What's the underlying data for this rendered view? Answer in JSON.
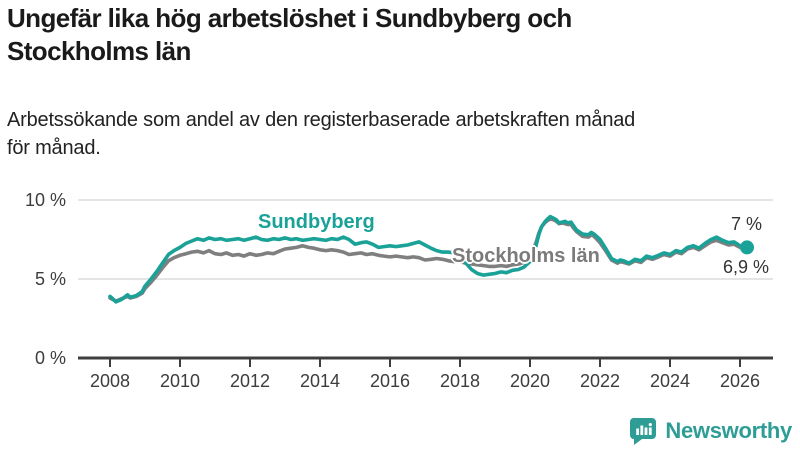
{
  "header": {
    "title_lines": [
      "Ungefär lika hög arbetslöshet i Sundbyberg och",
      "Stockholms län"
    ],
    "subtitle_lines": [
      "Arbetssökande som andel av den registerbaserade arbetskraften månad",
      "för månad."
    ]
  },
  "branding": {
    "name": "Newsworthy",
    "logo_icon": "speech-bubble-bar-chart",
    "brand_color": "#2e9d96"
  },
  "chart_data": {
    "type": "line",
    "title": "Ungefär lika hög arbetslöshet i Sundbyberg och Stockholms län",
    "subtitle": "Arbetssökande som andel av den registerbaserade arbetskraften månad för månad.",
    "xlabel": "",
    "ylabel": "",
    "grid": "horizontal",
    "legend_position": "inline-labels",
    "xlim": [
      2007.9,
      2026.9
    ],
    "ylim": [
      0,
      10.5
    ],
    "y_ticks": [
      {
        "value": 0,
        "label": "0 %"
      },
      {
        "value": 5,
        "label": "5 %"
      },
      {
        "value": 10,
        "label": "10 %"
      }
    ],
    "x_ticks": [
      {
        "value": 2008,
        "label": "2008"
      },
      {
        "value": 2010,
        "label": "2010"
      },
      {
        "value": 2012,
        "label": "2012"
      },
      {
        "value": 2014,
        "label": "2014"
      },
      {
        "value": 2016,
        "label": "2016"
      },
      {
        "value": 2018,
        "label": "2018"
      },
      {
        "value": 2020,
        "label": "2020"
      },
      {
        "value": 2022,
        "label": "2022"
      },
      {
        "value": 2024,
        "label": "2024"
      },
      {
        "value": 2026,
        "label": "2026"
      }
    ],
    "series": [
      {
        "id": "stockholms-lan",
        "name": "Stockholms län",
        "color": "#7f7f7f",
        "end_label": "6,9 %",
        "end_value": 6.9,
        "end_dot": false,
        "points": [
          [
            2008.0,
            3.8
          ],
          [
            2008.08,
            3.7
          ],
          [
            2008.17,
            3.6
          ],
          [
            2008.33,
            3.75
          ],
          [
            2008.5,
            3.9
          ],
          [
            2008.58,
            3.8
          ],
          [
            2008.75,
            3.9
          ],
          [
            2008.92,
            4.1
          ],
          [
            2009.0,
            4.4
          ],
          [
            2009.17,
            4.8
          ],
          [
            2009.33,
            5.2
          ],
          [
            2009.5,
            5.7
          ],
          [
            2009.67,
            6.15
          ],
          [
            2009.83,
            6.35
          ],
          [
            2010.0,
            6.5
          ],
          [
            2010.17,
            6.6
          ],
          [
            2010.33,
            6.7
          ],
          [
            2010.5,
            6.75
          ],
          [
            2010.67,
            6.65
          ],
          [
            2010.83,
            6.8
          ],
          [
            2011.0,
            6.6
          ],
          [
            2011.17,
            6.55
          ],
          [
            2011.33,
            6.65
          ],
          [
            2011.5,
            6.5
          ],
          [
            2011.67,
            6.55
          ],
          [
            2011.83,
            6.45
          ],
          [
            2012.0,
            6.6
          ],
          [
            2012.17,
            6.5
          ],
          [
            2012.33,
            6.55
          ],
          [
            2012.5,
            6.65
          ],
          [
            2012.67,
            6.6
          ],
          [
            2012.83,
            6.75
          ],
          [
            2013.0,
            6.9
          ],
          [
            2013.17,
            6.95
          ],
          [
            2013.33,
            7.0
          ],
          [
            2013.5,
            7.1
          ],
          [
            2013.67,
            7.0
          ],
          [
            2013.83,
            6.95
          ],
          [
            2014.0,
            6.85
          ],
          [
            2014.17,
            6.8
          ],
          [
            2014.33,
            6.85
          ],
          [
            2014.5,
            6.8
          ],
          [
            2014.67,
            6.7
          ],
          [
            2014.83,
            6.55
          ],
          [
            2015.0,
            6.6
          ],
          [
            2015.17,
            6.65
          ],
          [
            2015.33,
            6.55
          ],
          [
            2015.5,
            6.6
          ],
          [
            2015.67,
            6.5
          ],
          [
            2015.83,
            6.45
          ],
          [
            2016.0,
            6.4
          ],
          [
            2016.17,
            6.45
          ],
          [
            2016.33,
            6.4
          ],
          [
            2016.5,
            6.35
          ],
          [
            2016.67,
            6.4
          ],
          [
            2016.83,
            6.35
          ],
          [
            2017.0,
            6.2
          ],
          [
            2017.17,
            6.25
          ],
          [
            2017.33,
            6.3
          ],
          [
            2017.5,
            6.25
          ],
          [
            2017.67,
            6.15
          ],
          [
            2017.83,
            6.1
          ],
          [
            2018.0,
            6.1
          ],
          [
            2018.17,
            6.0
          ],
          [
            2018.33,
            5.95
          ],
          [
            2018.5,
            5.9
          ],
          [
            2018.67,
            5.85
          ],
          [
            2018.83,
            5.8
          ],
          [
            2019.0,
            5.8
          ],
          [
            2019.17,
            5.85
          ],
          [
            2019.33,
            5.8
          ],
          [
            2019.5,
            5.9
          ],
          [
            2019.67,
            5.95
          ],
          [
            2019.83,
            6.05
          ],
          [
            2020.0,
            6.4
          ],
          [
            2020.08,
            6.8
          ],
          [
            2020.17,
            7.3
          ],
          [
            2020.25,
            7.9
          ],
          [
            2020.33,
            8.3
          ],
          [
            2020.42,
            8.55
          ],
          [
            2020.5,
            8.7
          ],
          [
            2020.58,
            8.8
          ],
          [
            2020.67,
            8.75
          ],
          [
            2020.75,
            8.65
          ],
          [
            2020.83,
            8.5
          ],
          [
            2020.92,
            8.55
          ],
          [
            2021.0,
            8.5
          ],
          [
            2021.08,
            8.45
          ],
          [
            2021.17,
            8.45
          ],
          [
            2021.25,
            8.2
          ],
          [
            2021.33,
            8.0
          ],
          [
            2021.5,
            7.7
          ],
          [
            2021.67,
            7.65
          ],
          [
            2021.75,
            7.8
          ],
          [
            2021.83,
            7.7
          ],
          [
            2022.0,
            7.3
          ],
          [
            2022.17,
            6.75
          ],
          [
            2022.33,
            6.2
          ],
          [
            2022.5,
            6.0
          ],
          [
            2022.58,
            6.1
          ],
          [
            2022.67,
            6.05
          ],
          [
            2022.83,
            5.95
          ],
          [
            2023.0,
            6.15
          ],
          [
            2023.17,
            6.05
          ],
          [
            2023.33,
            6.35
          ],
          [
            2023.5,
            6.25
          ],
          [
            2023.67,
            6.4
          ],
          [
            2023.83,
            6.55
          ],
          [
            2024.0,
            6.45
          ],
          [
            2024.17,
            6.7
          ],
          [
            2024.33,
            6.6
          ],
          [
            2024.5,
            6.9
          ],
          [
            2024.67,
            7.0
          ],
          [
            2024.83,
            6.85
          ],
          [
            2025.0,
            7.1
          ],
          [
            2025.17,
            7.35
          ],
          [
            2025.33,
            7.45
          ],
          [
            2025.5,
            7.3
          ],
          [
            2025.67,
            7.15
          ],
          [
            2025.83,
            7.2
          ],
          [
            2026.0,
            7.0
          ],
          [
            2026.2,
            6.9
          ]
        ]
      },
      {
        "id": "sundbyberg",
        "name": "Sundbyberg",
        "color": "#1aa298",
        "end_label": "7 %",
        "end_value": 7.0,
        "end_dot": true,
        "points": [
          [
            2008.0,
            3.9
          ],
          [
            2008.08,
            3.75
          ],
          [
            2008.17,
            3.55
          ],
          [
            2008.33,
            3.7
          ],
          [
            2008.5,
            4.0
          ],
          [
            2008.58,
            3.85
          ],
          [
            2008.75,
            3.95
          ],
          [
            2008.92,
            4.2
          ],
          [
            2009.0,
            4.55
          ],
          [
            2009.17,
            5.0
          ],
          [
            2009.33,
            5.45
          ],
          [
            2009.5,
            6.0
          ],
          [
            2009.67,
            6.55
          ],
          [
            2009.83,
            6.8
          ],
          [
            2010.0,
            7.0
          ],
          [
            2010.17,
            7.25
          ],
          [
            2010.33,
            7.4
          ],
          [
            2010.5,
            7.55
          ],
          [
            2010.67,
            7.45
          ],
          [
            2010.83,
            7.6
          ],
          [
            2011.0,
            7.5
          ],
          [
            2011.17,
            7.55
          ],
          [
            2011.33,
            7.45
          ],
          [
            2011.5,
            7.5
          ],
          [
            2011.67,
            7.55
          ],
          [
            2011.83,
            7.45
          ],
          [
            2012.0,
            7.55
          ],
          [
            2012.17,
            7.65
          ],
          [
            2012.33,
            7.5
          ],
          [
            2012.5,
            7.45
          ],
          [
            2012.67,
            7.55
          ],
          [
            2012.83,
            7.5
          ],
          [
            2013.0,
            7.6
          ],
          [
            2013.17,
            7.5
          ],
          [
            2013.33,
            7.55
          ],
          [
            2013.5,
            7.45
          ],
          [
            2013.67,
            7.5
          ],
          [
            2013.83,
            7.55
          ],
          [
            2014.0,
            7.5
          ],
          [
            2014.17,
            7.45
          ],
          [
            2014.33,
            7.55
          ],
          [
            2014.5,
            7.5
          ],
          [
            2014.67,
            7.65
          ],
          [
            2014.83,
            7.5
          ],
          [
            2015.0,
            7.2
          ],
          [
            2015.17,
            7.3
          ],
          [
            2015.33,
            7.35
          ],
          [
            2015.5,
            7.2
          ],
          [
            2015.67,
            7.0
          ],
          [
            2015.83,
            7.05
          ],
          [
            2016.0,
            7.1
          ],
          [
            2016.17,
            7.05
          ],
          [
            2016.33,
            7.1
          ],
          [
            2016.5,
            7.15
          ],
          [
            2016.67,
            7.25
          ],
          [
            2016.83,
            7.35
          ],
          [
            2017.0,
            7.15
          ],
          [
            2017.17,
            6.95
          ],
          [
            2017.33,
            6.8
          ],
          [
            2017.5,
            6.7
          ],
          [
            2017.67,
            6.7
          ],
          [
            2017.83,
            6.65
          ],
          [
            2017.92,
            6.8
          ],
          [
            2018.0,
            6.5
          ],
          [
            2018.17,
            6.0
          ],
          [
            2018.33,
            5.6
          ],
          [
            2018.5,
            5.35
          ],
          [
            2018.67,
            5.25
          ],
          [
            2018.83,
            5.3
          ],
          [
            2019.0,
            5.35
          ],
          [
            2019.17,
            5.45
          ],
          [
            2019.33,
            5.4
          ],
          [
            2019.5,
            5.55
          ],
          [
            2019.67,
            5.6
          ],
          [
            2019.83,
            5.75
          ],
          [
            2020.0,
            6.1
          ],
          [
            2020.08,
            6.5
          ],
          [
            2020.17,
            7.1
          ],
          [
            2020.25,
            7.8
          ],
          [
            2020.33,
            8.3
          ],
          [
            2020.42,
            8.6
          ],
          [
            2020.5,
            8.8
          ],
          [
            2020.58,
            8.95
          ],
          [
            2020.67,
            8.85
          ],
          [
            2020.75,
            8.75
          ],
          [
            2020.83,
            8.55
          ],
          [
            2020.92,
            8.6
          ],
          [
            2021.0,
            8.65
          ],
          [
            2021.08,
            8.55
          ],
          [
            2021.17,
            8.6
          ],
          [
            2021.25,
            8.35
          ],
          [
            2021.33,
            8.1
          ],
          [
            2021.5,
            7.85
          ],
          [
            2021.67,
            7.8
          ],
          [
            2021.75,
            7.95
          ],
          [
            2021.83,
            7.85
          ],
          [
            2022.0,
            7.5
          ],
          [
            2022.17,
            6.9
          ],
          [
            2022.33,
            6.3
          ],
          [
            2022.5,
            6.1
          ],
          [
            2022.58,
            6.2
          ],
          [
            2022.67,
            6.15
          ],
          [
            2022.83,
            6.0
          ],
          [
            2023.0,
            6.25
          ],
          [
            2023.17,
            6.15
          ],
          [
            2023.33,
            6.45
          ],
          [
            2023.5,
            6.35
          ],
          [
            2023.67,
            6.5
          ],
          [
            2023.83,
            6.65
          ],
          [
            2024.0,
            6.55
          ],
          [
            2024.17,
            6.8
          ],
          [
            2024.33,
            6.7
          ],
          [
            2024.5,
            7.0
          ],
          [
            2024.67,
            7.1
          ],
          [
            2024.83,
            6.95
          ],
          [
            2025.0,
            7.25
          ],
          [
            2025.17,
            7.5
          ],
          [
            2025.33,
            7.65
          ],
          [
            2025.5,
            7.45
          ],
          [
            2025.67,
            7.3
          ],
          [
            2025.83,
            7.35
          ],
          [
            2026.0,
            7.1
          ],
          [
            2026.2,
            7.0
          ]
        ]
      }
    ]
  }
}
